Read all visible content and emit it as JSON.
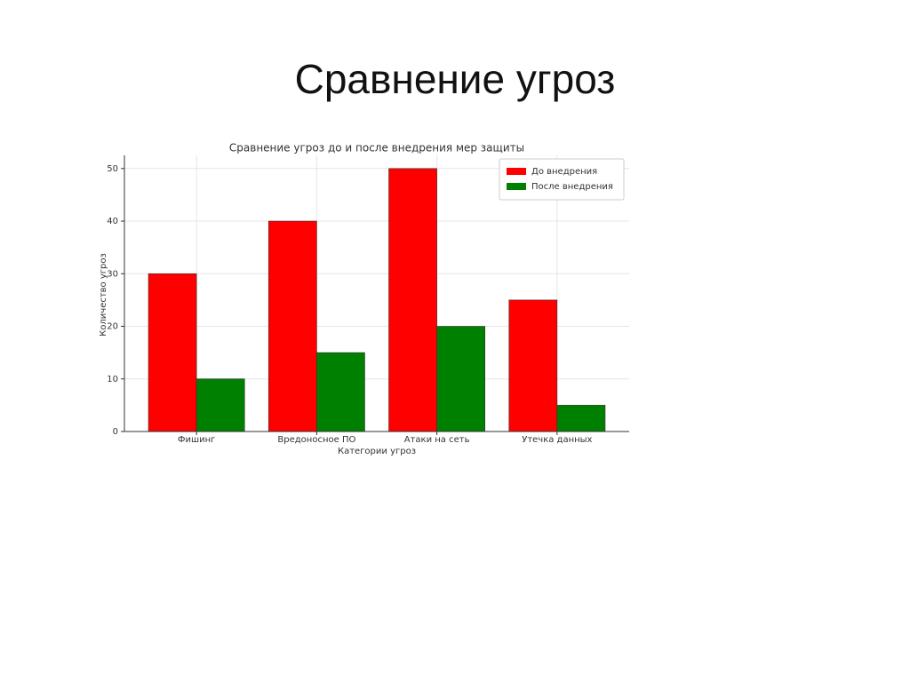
{
  "slide": {
    "title": "Сравнение угроз"
  },
  "chart_data": {
    "type": "bar",
    "title": "Сравнение угроз до и после внедрения мер защиты",
    "x_label": "Категории угроз",
    "y_label": "Количество угроз",
    "categories": [
      "Фишинг",
      "Вредоносное ПО",
      "Атаки на сеть",
      "Утечка данных"
    ],
    "series": [
      {
        "name": "До внедрения",
        "color": "#ff0000",
        "values": [
          30,
          40,
          50,
          25
        ]
      },
      {
        "name": "После внедрения",
        "color": "#008000",
        "values": [
          10,
          15,
          20,
          5
        ]
      }
    ],
    "ylim": [
      0,
      52.5
    ],
    "yticks": [
      0,
      10,
      20,
      30,
      40,
      50
    ],
    "grid": true,
    "legend": "upper-right"
  }
}
